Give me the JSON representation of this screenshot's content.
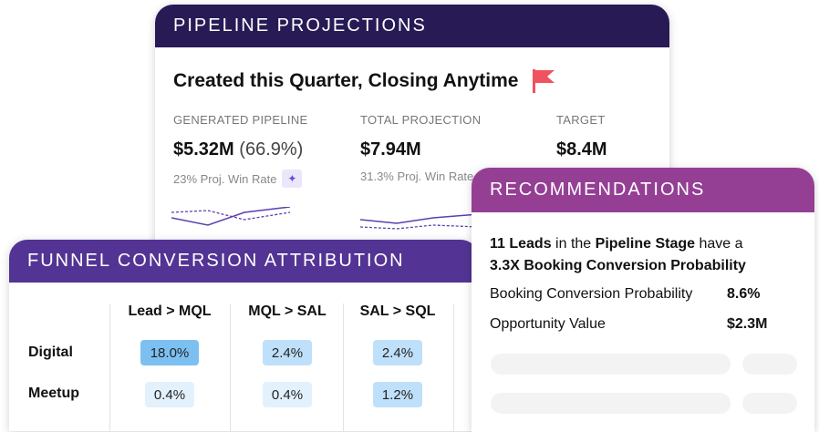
{
  "pipeline": {
    "title": "PIPELINE PROJECTIONS",
    "subtitle": "Created this Quarter, Closing Anytime",
    "flag_icon": "flag-icon",
    "flag_color": "#f0525f",
    "kpis": [
      {
        "label": "GENERATED PIPELINE",
        "value": "$5.32M",
        "pct": "(66.9%)",
        "sub": "23% Proj. Win Rate",
        "icon": "sparkle-icon"
      },
      {
        "label": "TOTAL PROJECTION",
        "value": "$7.94M",
        "sub": "31.3% Proj. Win Rate"
      },
      {
        "label": "TARGET",
        "value": "$8.4M"
      }
    ]
  },
  "funnel": {
    "title": "FUNNEL CONVERSION ATTRIBUTION",
    "columns": [
      "Lead > MQL",
      "MQL > SAL",
      "SAL > SQL"
    ],
    "rows": [
      {
        "label": "Digital",
        "values": [
          "18.0%",
          "2.4%",
          "2.4%"
        ]
      },
      {
        "label": "Meetup",
        "values": [
          "0.4%",
          "0.4%",
          "1.2%"
        ]
      }
    ]
  },
  "recommendations": {
    "title": "RECOMMENDATIONS",
    "count": "11 Leads",
    "t1": " in the ",
    "stage": "Pipeline Stage",
    "t2": " have a ",
    "prob": "3.3X Booking Conversion Probability",
    "metrics": [
      {
        "label": "Booking Conversion Probability",
        "value": "8.6%"
      },
      {
        "label": "Opportunity Value",
        "value": "$2.3M"
      }
    ]
  },
  "colors": {
    "pipeline_header": "#271a55",
    "funnel_header": "#533494",
    "rec_header": "#943f94",
    "cell_strong": "#7cc0f2",
    "cell_mid": "#bfe0fa",
    "cell_light": "#e3f1fd",
    "line": "#5b3fb0"
  }
}
